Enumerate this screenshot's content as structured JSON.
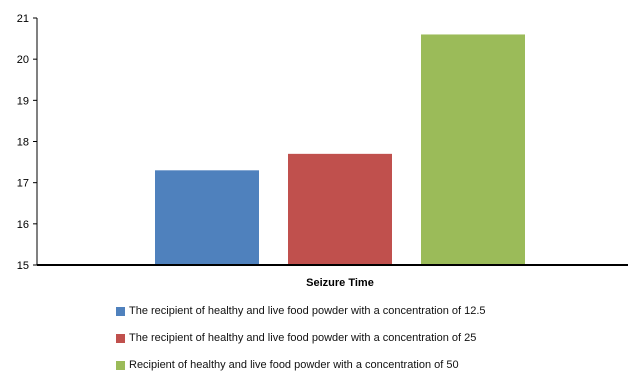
{
  "chart_data": {
    "type": "bar",
    "title": "",
    "xlabel": "Seizure Time",
    "ylabel": "",
    "ylim": [
      15,
      21
    ],
    "yticks": [
      15,
      16,
      17,
      18,
      19,
      20,
      21
    ],
    "grid": false,
    "legend_position": "bottom",
    "series": [
      {
        "name": "The recipient of healthy and live food powder with a concentration of 12.5",
        "value": 17.3,
        "color": "#4F81BD"
      },
      {
        "name": "The recipient of healthy and live food powder with a concentration of 25",
        "value": 17.7,
        "color": "#C0504D"
      },
      {
        "name": "Recipient of healthy and live food powder with a concentration of 50",
        "value": 20.6,
        "color": "#9BBB59"
      }
    ]
  }
}
